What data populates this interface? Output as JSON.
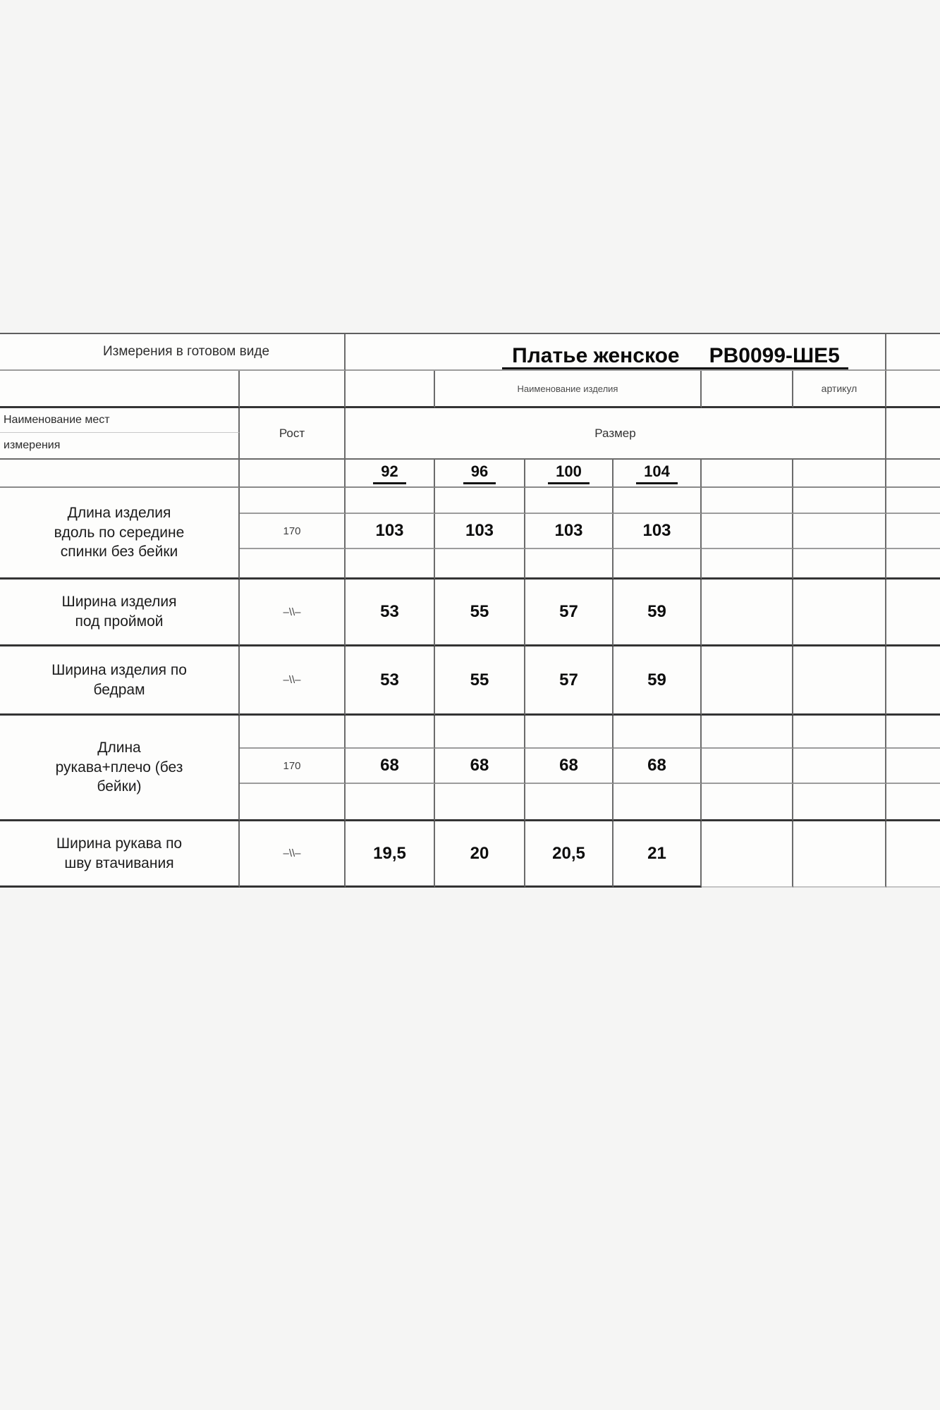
{
  "page": {
    "measurements_note": "Измерения в готовом виде",
    "product_title": "Платье женское",
    "article_code": "РВ0099-ШЕ5",
    "product_name_caption": "Наименование изделия",
    "article_caption": "артикул"
  },
  "table": {
    "row_header_line1": "Наименование мест",
    "row_header_line2": "измерения",
    "height_label": "Рост",
    "size_label": "Размер",
    "sizes": [
      "92",
      "96",
      "100",
      "104"
    ],
    "rows": [
      {
        "name": "Длина изделия вдоль по середине спинки без бейки",
        "height": "170",
        "values": [
          "103",
          "103",
          "103",
          "103"
        ]
      },
      {
        "name": "Ширина изделия под проймой",
        "height": "–\\\\–",
        "values": [
          "53",
          "55",
          "57",
          "59"
        ]
      },
      {
        "name": "Ширина изделия по бедрам",
        "height": "–\\\\–",
        "values": [
          "53",
          "55",
          "57",
          "59"
        ]
      },
      {
        "name": "Длина рукава+плечо (без бейки)",
        "height": "170",
        "values": [
          "68",
          "68",
          "68",
          "68"
        ]
      },
      {
        "name": "Ширина рукава по шву втачивания",
        "height": "–\\\\–",
        "values": [
          "19,5",
          "20",
          "20,5",
          "21"
        ]
      }
    ]
  },
  "colors": {
    "background": "#f5f5f4",
    "cell_background": "#fdfdfc",
    "grid_line": "#6b6b6b",
    "thick_separator": "#343434",
    "underline": "#121212"
  }
}
